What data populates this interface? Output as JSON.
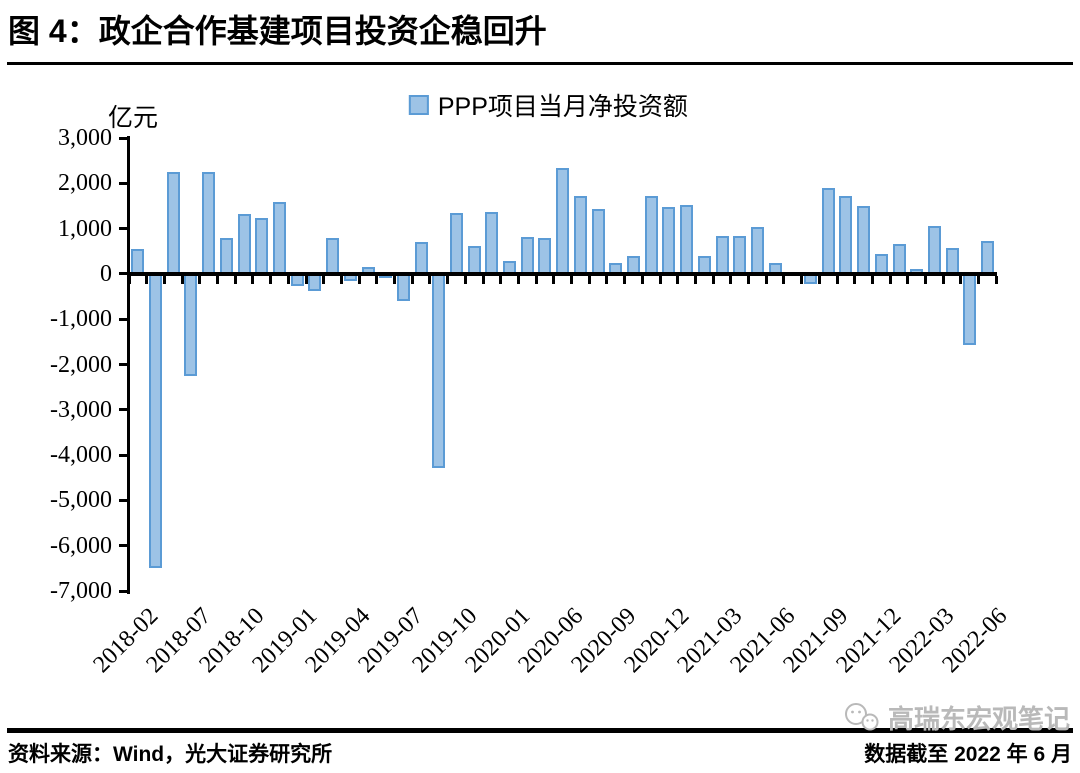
{
  "title": "图 4：政企合作基建项目投资企稳回升",
  "legend": {
    "label": "PPP项目当月净投资额"
  },
  "unit_label": "亿元",
  "footer": {
    "source": "资料来源：Wind，光大证券研究所",
    "note": "数据截至 2022 年 6 月"
  },
  "watermark": "高瑞东宏观笔记",
  "colors": {
    "bar_fill": "#9DC3E6",
    "bar_border": "#5B9BD5",
    "axis": "#000000",
    "watermark": "#b9b9b9"
  },
  "chart_data": {
    "type": "bar",
    "title": "图 4：政企合作基建项目投资企稳回升",
    "series_name": "PPP项目当月净投资额",
    "ylabel": "亿元",
    "ylim": [
      -7000,
      3000
    ],
    "ytick_step": 1000,
    "ytick_labels": [
      "3,000",
      "2,000",
      "1,000",
      "0",
      "-1,000",
      "-2,000",
      "-3,000",
      "-4,000",
      "-5,000",
      "-6,000",
      "-7,000"
    ],
    "grid": false,
    "legend_position": "top",
    "xtick_labels": [
      "2018-02",
      "2018-07",
      "2018-10",
      "2019-01",
      "2019-04",
      "2019-07",
      "2019-10",
      "2020-01",
      "2020-06",
      "2020-09",
      "2020-12",
      "2021-03",
      "2021-06",
      "2021-09",
      "2021-12",
      "2022-03",
      "2022-06"
    ],
    "xtick_positions": [
      0,
      3,
      6,
      9,
      12,
      15,
      18,
      21,
      24,
      27,
      30,
      33,
      36,
      39,
      42,
      45,
      48
    ],
    "values": [
      550,
      -6500,
      2250,
      -2250,
      2250,
      800,
      1330,
      1240,
      1580,
      -270,
      -370,
      800,
      -150,
      150,
      -50,
      -600,
      700,
      -4280,
      1350,
      610,
      1360,
      280,
      820,
      790,
      2330,
      1730,
      1440,
      250,
      390,
      1710,
      1470,
      1520,
      400,
      830,
      830,
      1040,
      250,
      0,
      -230,
      1900,
      1730,
      1500,
      450,
      660,
      100,
      1050,
      570,
      -1560,
      730
    ]
  }
}
